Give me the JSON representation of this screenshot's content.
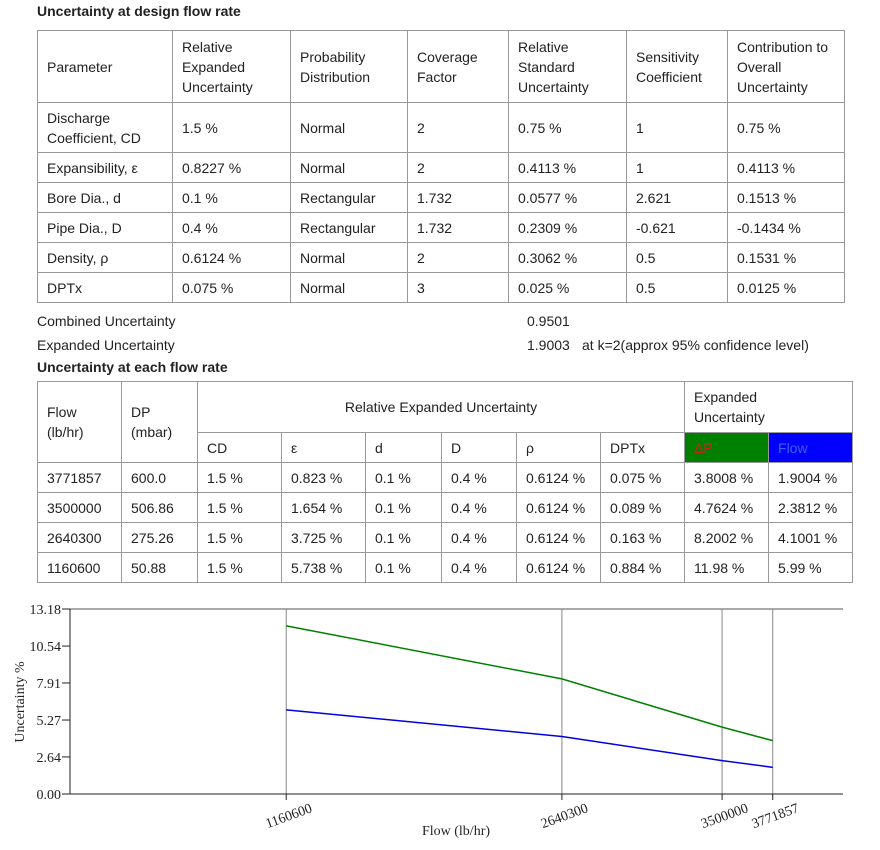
{
  "section1": {
    "title": "Uncertainty at design flow rate",
    "table": {
      "header": [
        "Parameter",
        "Relative Expanded Uncertainty",
        "Probability Distribution",
        "Coverage Factor",
        "Relative Standard Uncertainty",
        "Sensitivity Coefficient",
        "Contribution to Overall Uncertainty"
      ],
      "rows": [
        [
          "Discharge Coefficient, CD",
          "1.5 %",
          "Normal",
          "2",
          "0.75 %",
          "1",
          "0.75 %"
        ],
        [
          "Expansibility, ε",
          "0.8227 %",
          "Normal",
          "2",
          "0.4113 %",
          "1",
          "0.4113 %"
        ],
        [
          "Bore Dia., d",
          "0.1 %",
          "Rectangular",
          "1.732",
          "0.0577 %",
          "2.621",
          "0.1513 %"
        ],
        [
          "Pipe Dia., D",
          "0.4 %",
          "Rectangular",
          "1.732",
          "0.2309 %",
          "-0.621",
          "-0.1434 %"
        ],
        [
          "Density, ρ",
          "0.6124 %",
          "Normal",
          "2",
          "0.3062 %",
          "0.5",
          "0.1531 %"
        ],
        [
          "DPTx",
          "0.075 %",
          "Normal",
          "3",
          "0.025 %",
          "0.5",
          "0.0125 %"
        ]
      ]
    },
    "summary": [
      {
        "label": "Combined Uncertainty",
        "value": "0.9501"
      },
      {
        "label": "Expanded Uncertainty",
        "value": "1.9003",
        "note": "at k=2(approx 95% confidence level)"
      }
    ]
  },
  "section2": {
    "title": "Uncertainty at each flow rate",
    "table": {
      "header": {
        "flow": "Flow (lb/hr)",
        "dp": "DP (mbar)",
        "relative": "Relative Expanded Uncertainty",
        "expanded": "Expanded Uncertainty",
        "sub": [
          "CD",
          "ε",
          "d",
          "D",
          "ρ",
          "DPTx",
          "ΔP",
          "Flow"
        ]
      },
      "rows": [
        [
          "3771857",
          "600.0",
          "1.5 %",
          "0.823 %",
          "0.1 %",
          "0.4 %",
          "0.6124 %",
          "0.075 %",
          "3.8008 %",
          "1.9004 %"
        ],
        [
          "3500000",
          "506.86",
          "1.5 %",
          "1.654 %",
          "0.1 %",
          "0.4 %",
          "0.6124 %",
          "0.089 %",
          "4.7624 %",
          "2.3812 %"
        ],
        [
          "2640300",
          "275.26",
          "1.5 %",
          "3.725 %",
          "0.1 %",
          "0.4 %",
          "0.6124 %",
          "0.163 %",
          "8.2002 %",
          "4.1001 %"
        ],
        [
          "1160600",
          "50.88",
          "1.5 %",
          "5.738 %",
          "0.1 %",
          "0.4 %",
          "0.6124 %",
          "0.884 %",
          "11.98 %",
          "5.99 %"
        ]
      ]
    }
  },
  "chart_data": {
    "type": "line",
    "x_label": "Flow (lb/hr)",
    "y_label": "Uncertainty %",
    "x": [
      1160600,
      2640300,
      3500000,
      3771857
    ],
    "series": [
      {
        "color": "#008000",
        "values": [
          11.98,
          8.2002,
          4.7624,
          3.8008
        ]
      },
      {
        "color": "#0000e0",
        "values": [
          5.99,
          4.1001,
          2.3812,
          1.9004
        ]
      }
    ],
    "xlim": [
      0,
      4149043
    ],
    "xticks": [
      1160600,
      2640300,
      3500000,
      3771857
    ],
    "ylim": [
      0,
      13.18
    ],
    "yticks": [
      {
        "value": 0,
        "label": "0.00"
      },
      2.64,
      5.27,
      7.91,
      10.54,
      13.18
    ],
    "grid": true
  }
}
